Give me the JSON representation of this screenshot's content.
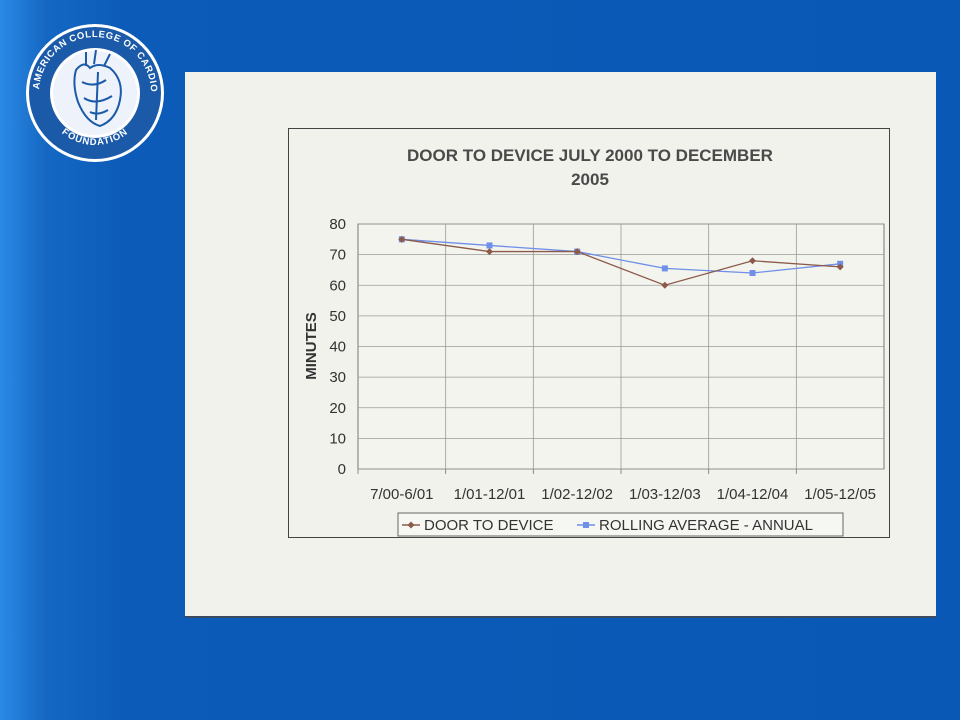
{
  "logo": {
    "ring_text": "AMERICAN COLLEGE OF CARDIOLOGY",
    "bottom_text": "FOUNDATION"
  },
  "chart_data": {
    "type": "line",
    "title": "DOOR TO DEVICE JULY 2000 TO DECEMBER 2005",
    "title_lines": [
      "DOOR TO DEVICE JULY 2000 TO DECEMBER",
      "2005"
    ],
    "xlabel": "",
    "ylabel": "MINUTES",
    "categories": [
      "7/00-6/01",
      "1/01-12/01",
      "1/02-12/02",
      "1/03-12/03",
      "1/04-12/04",
      "1/05-12/05"
    ],
    "ylim": [
      0,
      80
    ],
    "yticks": [
      0,
      10,
      20,
      30,
      40,
      50,
      60,
      70,
      80
    ],
    "grid": true,
    "legend_position": "bottom",
    "series": [
      {
        "name": "DOOR TO DEVICE",
        "values": [
          75,
          71,
          71,
          60,
          68,
          66
        ],
        "color": "#8b5a4a",
        "marker": "diamond"
      },
      {
        "name": "ROLLING AVERAGE - ANNUAL",
        "values": [
          75,
          73,
          71,
          65.5,
          64,
          67
        ],
        "color": "#6f8fe8",
        "marker": "square"
      }
    ]
  }
}
